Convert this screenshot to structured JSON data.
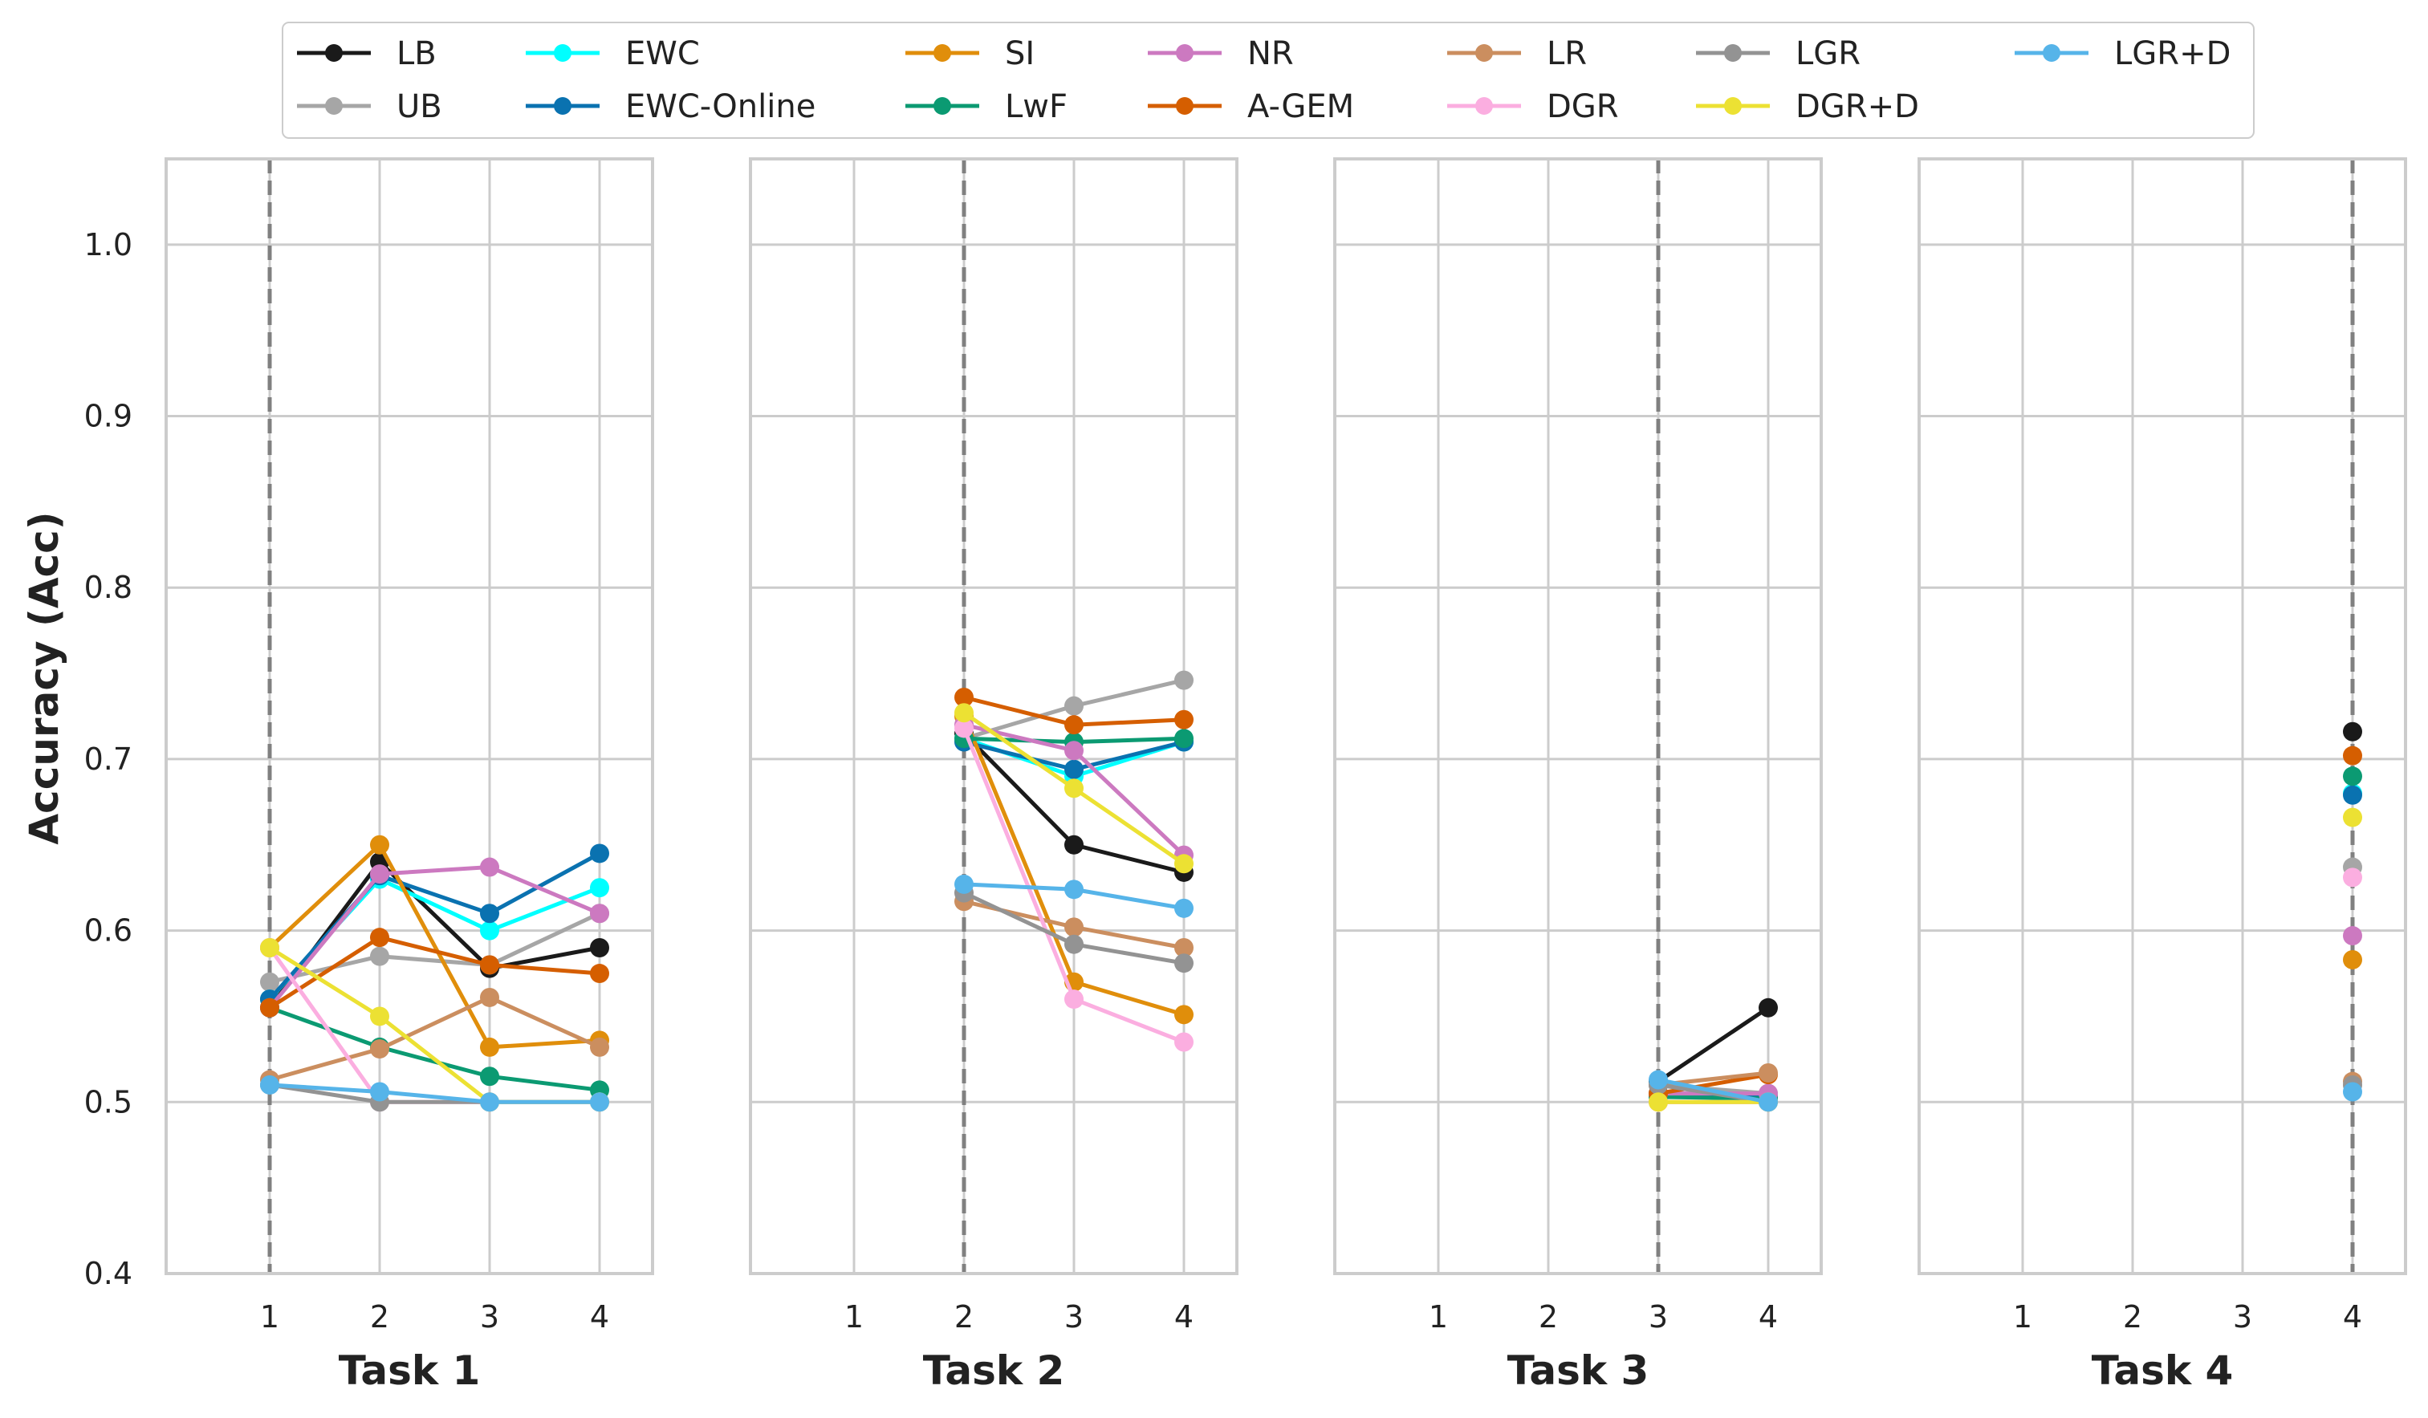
{
  "chart_data": {
    "type": "line",
    "ylabel": "Accuracy (Acc)",
    "ylim": [
      0.4,
      1.05
    ],
    "yticks": [
      "0.4",
      "0.5",
      "0.6",
      "0.7",
      "0.8",
      "0.9",
      "1.0"
    ],
    "xticks": [
      "1",
      "2",
      "3",
      "4"
    ],
    "grid": true,
    "legend_position": "top-center",
    "panels": [
      {
        "title": "Task 1",
        "marker_task": 1,
        "series": {
          "LB": [
            [
              1,
              0.555
            ],
            [
              2,
              0.64
            ],
            [
              3,
              0.578
            ],
            [
              4,
              0.59
            ]
          ],
          "UB": [
            [
              1,
              0.57
            ],
            [
              2,
              0.585
            ],
            [
              3,
              0.58
            ],
            [
              4,
              0.61
            ]
          ],
          "EWC": [
            [
              1,
              0.56
            ],
            [
              2,
              0.63
            ],
            [
              3,
              0.6
            ],
            [
              4,
              0.625
            ]
          ],
          "EWC-Online": [
            [
              1,
              0.56
            ],
            [
              2,
              0.632
            ],
            [
              3,
              0.61
            ],
            [
              4,
              0.645
            ]
          ],
          "SI": [
            [
              1,
              0.59
            ],
            [
              2,
              0.65
            ],
            [
              3,
              0.532
            ],
            [
              4,
              0.536
            ]
          ],
          "LwF": [
            [
              1,
              0.555
            ],
            [
              2,
              0.532
            ],
            [
              3,
              0.515
            ],
            [
              4,
              0.507
            ]
          ],
          "NR": [
            [
              1,
              0.555
            ],
            [
              2,
              0.633
            ],
            [
              3,
              0.637
            ],
            [
              4,
              0.61
            ]
          ],
          "A-GEM": [
            [
              1,
              0.555
            ],
            [
              2,
              0.596
            ],
            [
              3,
              0.58
            ],
            [
              4,
              0.575
            ]
          ],
          "LR": [
            [
              1,
              0.513
            ],
            [
              2,
              0.531
            ],
            [
              3,
              0.561
            ],
            [
              4,
              0.532
            ]
          ],
          "DGR": [
            [
              1,
              0.59
            ],
            [
              2,
              0.5
            ],
            [
              3,
              0.5
            ],
            [
              4,
              0.5
            ]
          ],
          "LGR": [
            [
              1,
              0.51
            ],
            [
              2,
              0.5
            ],
            [
              3,
              0.5
            ],
            [
              4,
              0.5
            ]
          ],
          "DGR+D": [
            [
              1,
              0.59
            ],
            [
              2,
              0.55
            ],
            [
              3,
              0.5
            ],
            [
              4,
              0.5
            ]
          ],
          "LGR+D": [
            [
              1,
              0.51
            ],
            [
              2,
              0.506
            ],
            [
              3,
              0.5
            ],
            [
              4,
              0.5
            ]
          ]
        }
      },
      {
        "title": "Task 2",
        "marker_task": 2,
        "series": {
          "LB": [
            [
              2,
              0.715
            ],
            [
              3,
              0.65
            ],
            [
              4,
              0.634
            ]
          ],
          "UB": [
            [
              2,
              0.712
            ],
            [
              3,
              0.731
            ],
            [
              4,
              0.746
            ]
          ],
          "EWC": [
            [
              2,
              0.712
            ],
            [
              3,
              0.69
            ],
            [
              4,
              0.71
            ]
          ],
          "EWC-Online": [
            [
              2,
              0.71
            ],
            [
              3,
              0.694
            ],
            [
              4,
              0.71
            ]
          ],
          "SI": [
            [
              2,
              0.725
            ],
            [
              3,
              0.57
            ],
            [
              4,
              0.551
            ]
          ],
          "LwF": [
            [
              2,
              0.712
            ],
            [
              3,
              0.71
            ],
            [
              4,
              0.712
            ]
          ],
          "NR": [
            [
              2,
              0.72
            ],
            [
              3,
              0.705
            ],
            [
              4,
              0.644
            ]
          ],
          "A-GEM": [
            [
              2,
              0.736
            ],
            [
              3,
              0.72
            ],
            [
              4,
              0.723
            ]
          ],
          "LR": [
            [
              2,
              0.617
            ],
            [
              3,
              0.602
            ],
            [
              4,
              0.59
            ]
          ],
          "DGR": [
            [
              2,
              0.718
            ],
            [
              3,
              0.56
            ],
            [
              4,
              0.535
            ]
          ],
          "LGR": [
            [
              2,
              0.622
            ],
            [
              3,
              0.592
            ],
            [
              4,
              0.581
            ]
          ],
          "DGR+D": [
            [
              2,
              0.727
            ],
            [
              3,
              0.683
            ],
            [
              4,
              0.639
            ]
          ],
          "LGR+D": [
            [
              2,
              0.627
            ],
            [
              3,
              0.624
            ],
            [
              4,
              0.613
            ]
          ]
        }
      },
      {
        "title": "Task 3",
        "marker_task": 3,
        "series": {
          "LB": [
            [
              3,
              0.512
            ],
            [
              4,
              0.555
            ]
          ],
          "UB": [
            [
              3,
              0.51
            ],
            [
              4,
              0.505
            ]
          ],
          "EWC": [
            [
              3,
              0.505
            ],
            [
              4,
              0.5
            ]
          ],
          "EWC-Online": [
            [
              3,
              0.505
            ],
            [
              4,
              0.503
            ]
          ],
          "SI": [
            [
              3,
              0.5
            ],
            [
              4,
              0.5
            ]
          ],
          "LwF": [
            [
              3,
              0.503
            ],
            [
              4,
              0.502
            ]
          ],
          "NR": [
            [
              3,
              0.505
            ],
            [
              4,
              0.505
            ]
          ],
          "A-GEM": [
            [
              3,
              0.505
            ],
            [
              4,
              0.516
            ]
          ],
          "LR": [
            [
              3,
              0.51
            ],
            [
              4,
              0.517
            ]
          ],
          "DGR": [
            [
              3,
              0.5
            ],
            [
              4,
              0.5
            ]
          ],
          "LGR": [
            [
              3,
              0.51
            ],
            [
              4,
              0.5
            ]
          ],
          "DGR+D": [
            [
              3,
              0.5
            ],
            [
              4,
              0.5
            ]
          ],
          "LGR+D": [
            [
              3,
              0.513
            ],
            [
              4,
              0.5
            ]
          ]
        }
      },
      {
        "title": "Task 4",
        "marker_task": 4,
        "series": {
          "LB": [
            [
              4,
              0.716
            ]
          ],
          "UB": [
            [
              4,
              0.637
            ]
          ],
          "EWC": [
            [
              4,
              0.68
            ]
          ],
          "EWC-Online": [
            [
              4,
              0.679
            ]
          ],
          "SI": [
            [
              4,
              0.583
            ]
          ],
          "LwF": [
            [
              4,
              0.69
            ]
          ],
          "NR": [
            [
              4,
              0.597
            ]
          ],
          "A-GEM": [
            [
              4,
              0.702
            ]
          ],
          "LR": [
            [
              4,
              0.512
            ]
          ],
          "DGR": [
            [
              4,
              0.631
            ]
          ],
          "LGR": [
            [
              4,
              0.51
            ]
          ],
          "DGR+D": [
            [
              4,
              0.666
            ]
          ],
          "LGR+D": [
            [
              4,
              0.506
            ]
          ]
        }
      }
    ],
    "series": [
      {
        "name": "LB",
        "color": "#1a1a1a"
      },
      {
        "name": "UB",
        "color": "#a6a6a6"
      },
      {
        "name": "EWC",
        "color": "#00ffff"
      },
      {
        "name": "EWC-Online",
        "color": "#0a72b0"
      },
      {
        "name": "SI",
        "color": "#e08e0b"
      },
      {
        "name": "LwF",
        "color": "#0b9a72"
      },
      {
        "name": "NR",
        "color": "#cc79c0"
      },
      {
        "name": "A-GEM",
        "color": "#d55e00"
      },
      {
        "name": "LR",
        "color": "#cb8e5f"
      },
      {
        "name": "DGR",
        "color": "#fbaee0"
      },
      {
        "name": "LGR",
        "color": "#939393"
      },
      {
        "name": "DGR+D",
        "color": "#ece133"
      },
      {
        "name": "LGR+D",
        "color": "#56b4e9"
      }
    ]
  }
}
